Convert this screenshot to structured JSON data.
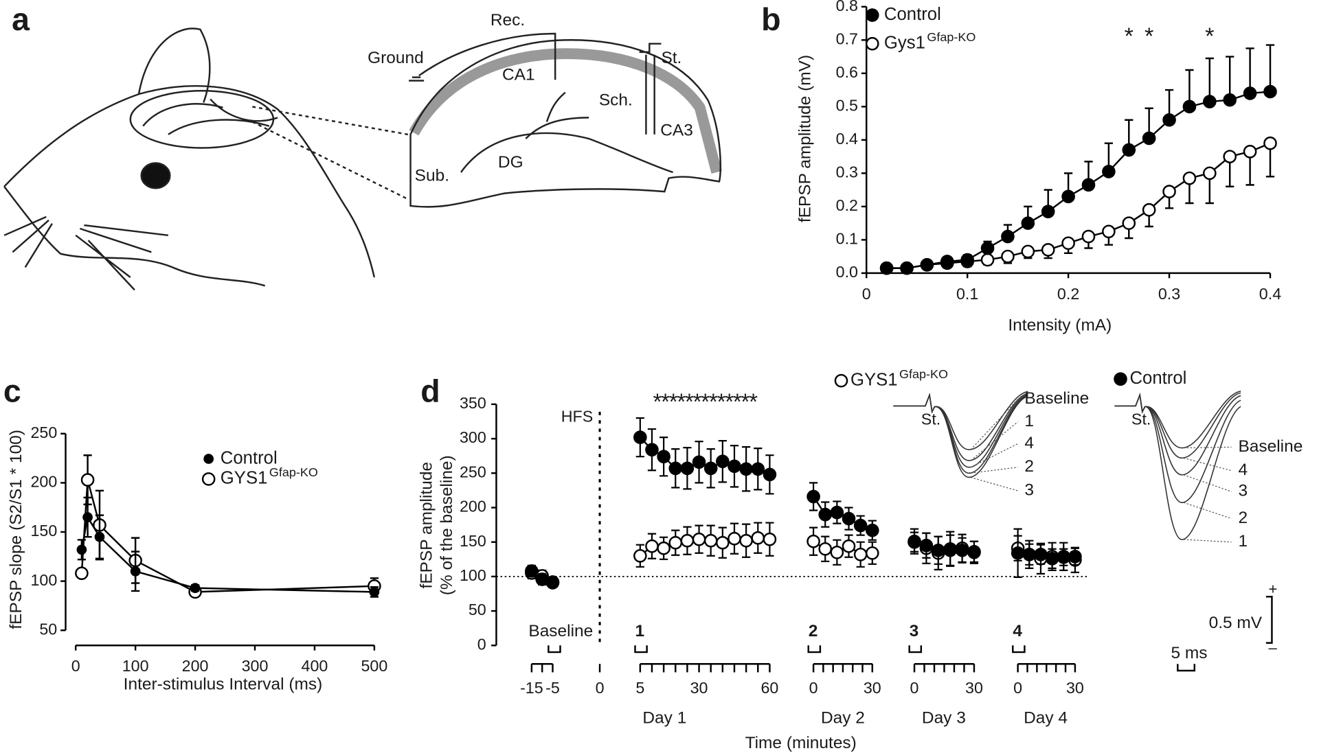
{
  "diagram": {
    "panel_label": "a",
    "labels": [
      "Rec.",
      "Ground",
      "CA1",
      "Sch.",
      "St.",
      "CA3",
      "Sub.",
      "DG"
    ]
  },
  "chart_data": [
    {
      "panel_label": "b",
      "type": "line",
      "xlabel": "Intensity (mA)",
      "ylabel": "fEPSP amplitude (mV)",
      "x": [
        0.02,
        0.04,
        0.06,
        0.08,
        0.1,
        0.12,
        0.14,
        0.16,
        0.18,
        0.2,
        0.22,
        0.24,
        0.26,
        0.28,
        0.3,
        0.32,
        0.34,
        0.36,
        0.38,
        0.4
      ],
      "xlim": [
        0,
        0.4
      ],
      "xticks": [
        0,
        0.1,
        0.2,
        0.3,
        0.4
      ],
      "ylim": [
        0,
        0.8
      ],
      "yticks": [
        {
          "value": 0,
          "label": "0.0"
        },
        0.1,
        0.2,
        0.3,
        0.4,
        0.5,
        0.6,
        0.7,
        0.8
      ],
      "legend": "upper left",
      "series": [
        {
          "name": "Control",
          "color": "#000000",
          "marker_fill": "#000000",
          "error_side": "up",
          "values": [
            0.015,
            0.015,
            0.025,
            0.035,
            0.04,
            0.075,
            0.11,
            0.15,
            0.185,
            0.23,
            0.265,
            0.305,
            0.37,
            0.405,
            0.46,
            0.5,
            0.515,
            0.52,
            0.54,
            0.545
          ],
          "errors": [
            0.01,
            0.01,
            0.01,
            0.01,
            0.015,
            0.02,
            0.035,
            0.05,
            0.065,
            0.07,
            0.07,
            0.085,
            0.09,
            0.09,
            0.09,
            0.11,
            0.13,
            0.13,
            0.135,
            0.14
          ]
        },
        {
          "name": "Gys1",
          "name_sup": "Gfap-KO",
          "color": "#000000",
          "marker_fill": "#ffffff",
          "error_side": "down",
          "values": [
            0.015,
            0.015,
            0.025,
            0.03,
            0.035,
            0.04,
            0.05,
            0.065,
            0.07,
            0.09,
            0.11,
            0.125,
            0.15,
            0.19,
            0.245,
            0.285,
            0.3,
            0.35,
            0.365,
            0.39
          ],
          "errors": [
            0.01,
            0.01,
            0.01,
            0.01,
            0.015,
            0.015,
            0.02,
            0.02,
            0.025,
            0.03,
            0.035,
            0.04,
            0.045,
            0.05,
            0.05,
            0.075,
            0.09,
            0.09,
            0.1,
            0.1
          ]
        }
      ],
      "annotations": [
        {
          "text": "*",
          "x": 0.26
        },
        {
          "text": "*",
          "x": 0.28
        },
        {
          "text": "*",
          "x": 0.34
        }
      ]
    },
    {
      "panel_label": "c",
      "type": "line",
      "xlabel": "Inter-stimulus Interval (ms)",
      "ylabel": "fEPSP slope (S2/S1 * 100)",
      "x": [
        10,
        20,
        40,
        100,
        200,
        500
      ],
      "xlim": [
        0,
        500
      ],
      "xticks": [
        0,
        100,
        200,
        300,
        400,
        500
      ],
      "ylim": [
        50,
        250
      ],
      "yticks": [
        50,
        100,
        150,
        200,
        250
      ],
      "legend": "upper right",
      "series": [
        {
          "name": "Control",
          "color": "#000000",
          "marker_fill": "#000000",
          "error_side": "both",
          "values": [
            132,
            165,
            145,
            110,
            93,
            89
          ],
          "errors": [
            10,
            20,
            22,
            20,
            3,
            5
          ]
        },
        {
          "name": "GYS1",
          "name_sup": "Gfap-KO",
          "color": "#000000",
          "marker_fill": "#ffffff",
          "error_side": "both",
          "values": [
            108,
            203,
            157,
            121,
            89,
            95
          ],
          "errors": [
            3,
            25,
            35,
            23,
            3,
            8
          ]
        }
      ]
    },
    {
      "panel_label": "d",
      "type": "segmented-line",
      "xlabel": "Time (minutes)",
      "ylabel": [
        "fEPSP amplitude",
        "(% of the baseline)"
      ],
      "ylim": [
        0,
        350
      ],
      "yticks": [
        0,
        50,
        100,
        150,
        200,
        250,
        300,
        350
      ],
      "reference_line": 100,
      "event": {
        "label": "HFS",
        "x": 0
      },
      "annotation": "*************",
      "groups": [
        {
          "marker": "Baseline",
          "xlim": [
            -15,
            -5
          ],
          "minor_step": 5,
          "xticks": [
            -15,
            -5
          ],
          "x": [
            -15,
            -10,
            -5
          ]
        },
        {
          "marker": "1",
          "day": "Day 1",
          "xlim": [
            5,
            60
          ],
          "minor_step": 5,
          "xticks": [
            5,
            30,
            60
          ],
          "x": [
            5,
            10,
            15,
            20,
            25,
            30,
            35,
            40,
            45,
            50,
            55,
            60
          ]
        },
        {
          "marker": "2",
          "day": "Day 2",
          "xlim": [
            0,
            30
          ],
          "minor_step": 5,
          "xticks": [
            0,
            30
          ],
          "x": [
            0,
            6,
            12,
            18,
            24,
            30
          ]
        },
        {
          "marker": "3",
          "day": "Day 3",
          "xlim": [
            0,
            30
          ],
          "minor_step": 5,
          "xticks": [
            0,
            30
          ],
          "x": [
            0,
            6,
            12,
            18,
            24,
            30
          ]
        },
        {
          "marker": "4",
          "day": "Day 4",
          "xlim": [
            0,
            30
          ],
          "minor_step": 5,
          "xticks": [
            0,
            30
          ],
          "x": [
            0,
            6,
            12,
            18,
            24,
            30
          ]
        }
      ],
      "series": [
        {
          "name": "Control",
          "color": "#000000",
          "marker_fill": "#000000",
          "values": [
            [
              108,
              96,
              92
            ],
            [
              302,
              284,
              274,
              257,
              257,
              266,
              257,
              267,
              260,
              256,
              256,
              248
            ],
            [
              216,
              190,
              193,
              184,
              174,
              167
            ],
            [
              150,
              145,
              138,
              140,
              138,
              136
            ],
            [
              134,
              132,
              132,
              126,
              128,
              129
            ]
          ],
          "errors": [
            [
              8,
              8,
              6
            ],
            [
              28,
              30,
              28,
              28,
              30,
              30,
              28,
              30,
              30,
              32,
              30,
              28
            ],
            [
              20,
              18,
              16,
              16,
              14,
              14
            ],
            [
              14,
              18,
              20,
              25,
              18,
              15
            ],
            [
              35,
              15,
              14,
              14,
              12,
              12
            ]
          ]
        },
        {
          "name": "GYS1",
          "name_sup": "Gfap-KO",
          "color": "#000000",
          "marker_fill": "#ffffff",
          "values": [
            [
              105,
              101,
              91
            ],
            [
              130,
              144,
              141,
              149,
              152,
              154,
              152,
              149,
              155,
              152,
              156,
              154
            ],
            [
              151,
              140,
              135,
              144,
              132,
              134
            ],
            [
              151,
              141,
              134,
              138,
              141,
              135
            ],
            [
              141,
              132,
              126,
              129,
              129,
              124
            ]
          ],
          "errors": [
            [
              8,
              8,
              6
            ],
            [
              16,
              18,
              16,
              18,
              20,
              20,
              22,
              22,
              22,
              24,
              22,
              24
            ],
            [
              20,
              18,
              18,
              16,
              18,
              16
            ],
            [
              18,
              22,
              24,
              22,
              20,
              16
            ],
            [
              18,
              20,
              22,
              20,
              20,
              18
            ]
          ]
        }
      ],
      "insets": {
        "ko": {
          "stim": "St.",
          "labels": [
            "Baseline",
            "1",
            "4",
            "2",
            "3"
          ]
        },
        "control": {
          "stim": "St.",
          "labels": [
            "Baseline",
            "4",
            "3",
            "2",
            "1"
          ]
        },
        "scale": {
          "y": "0.5 mV",
          "x": "5 ms",
          "plus": "+",
          "minus": "–"
        }
      }
    }
  ]
}
